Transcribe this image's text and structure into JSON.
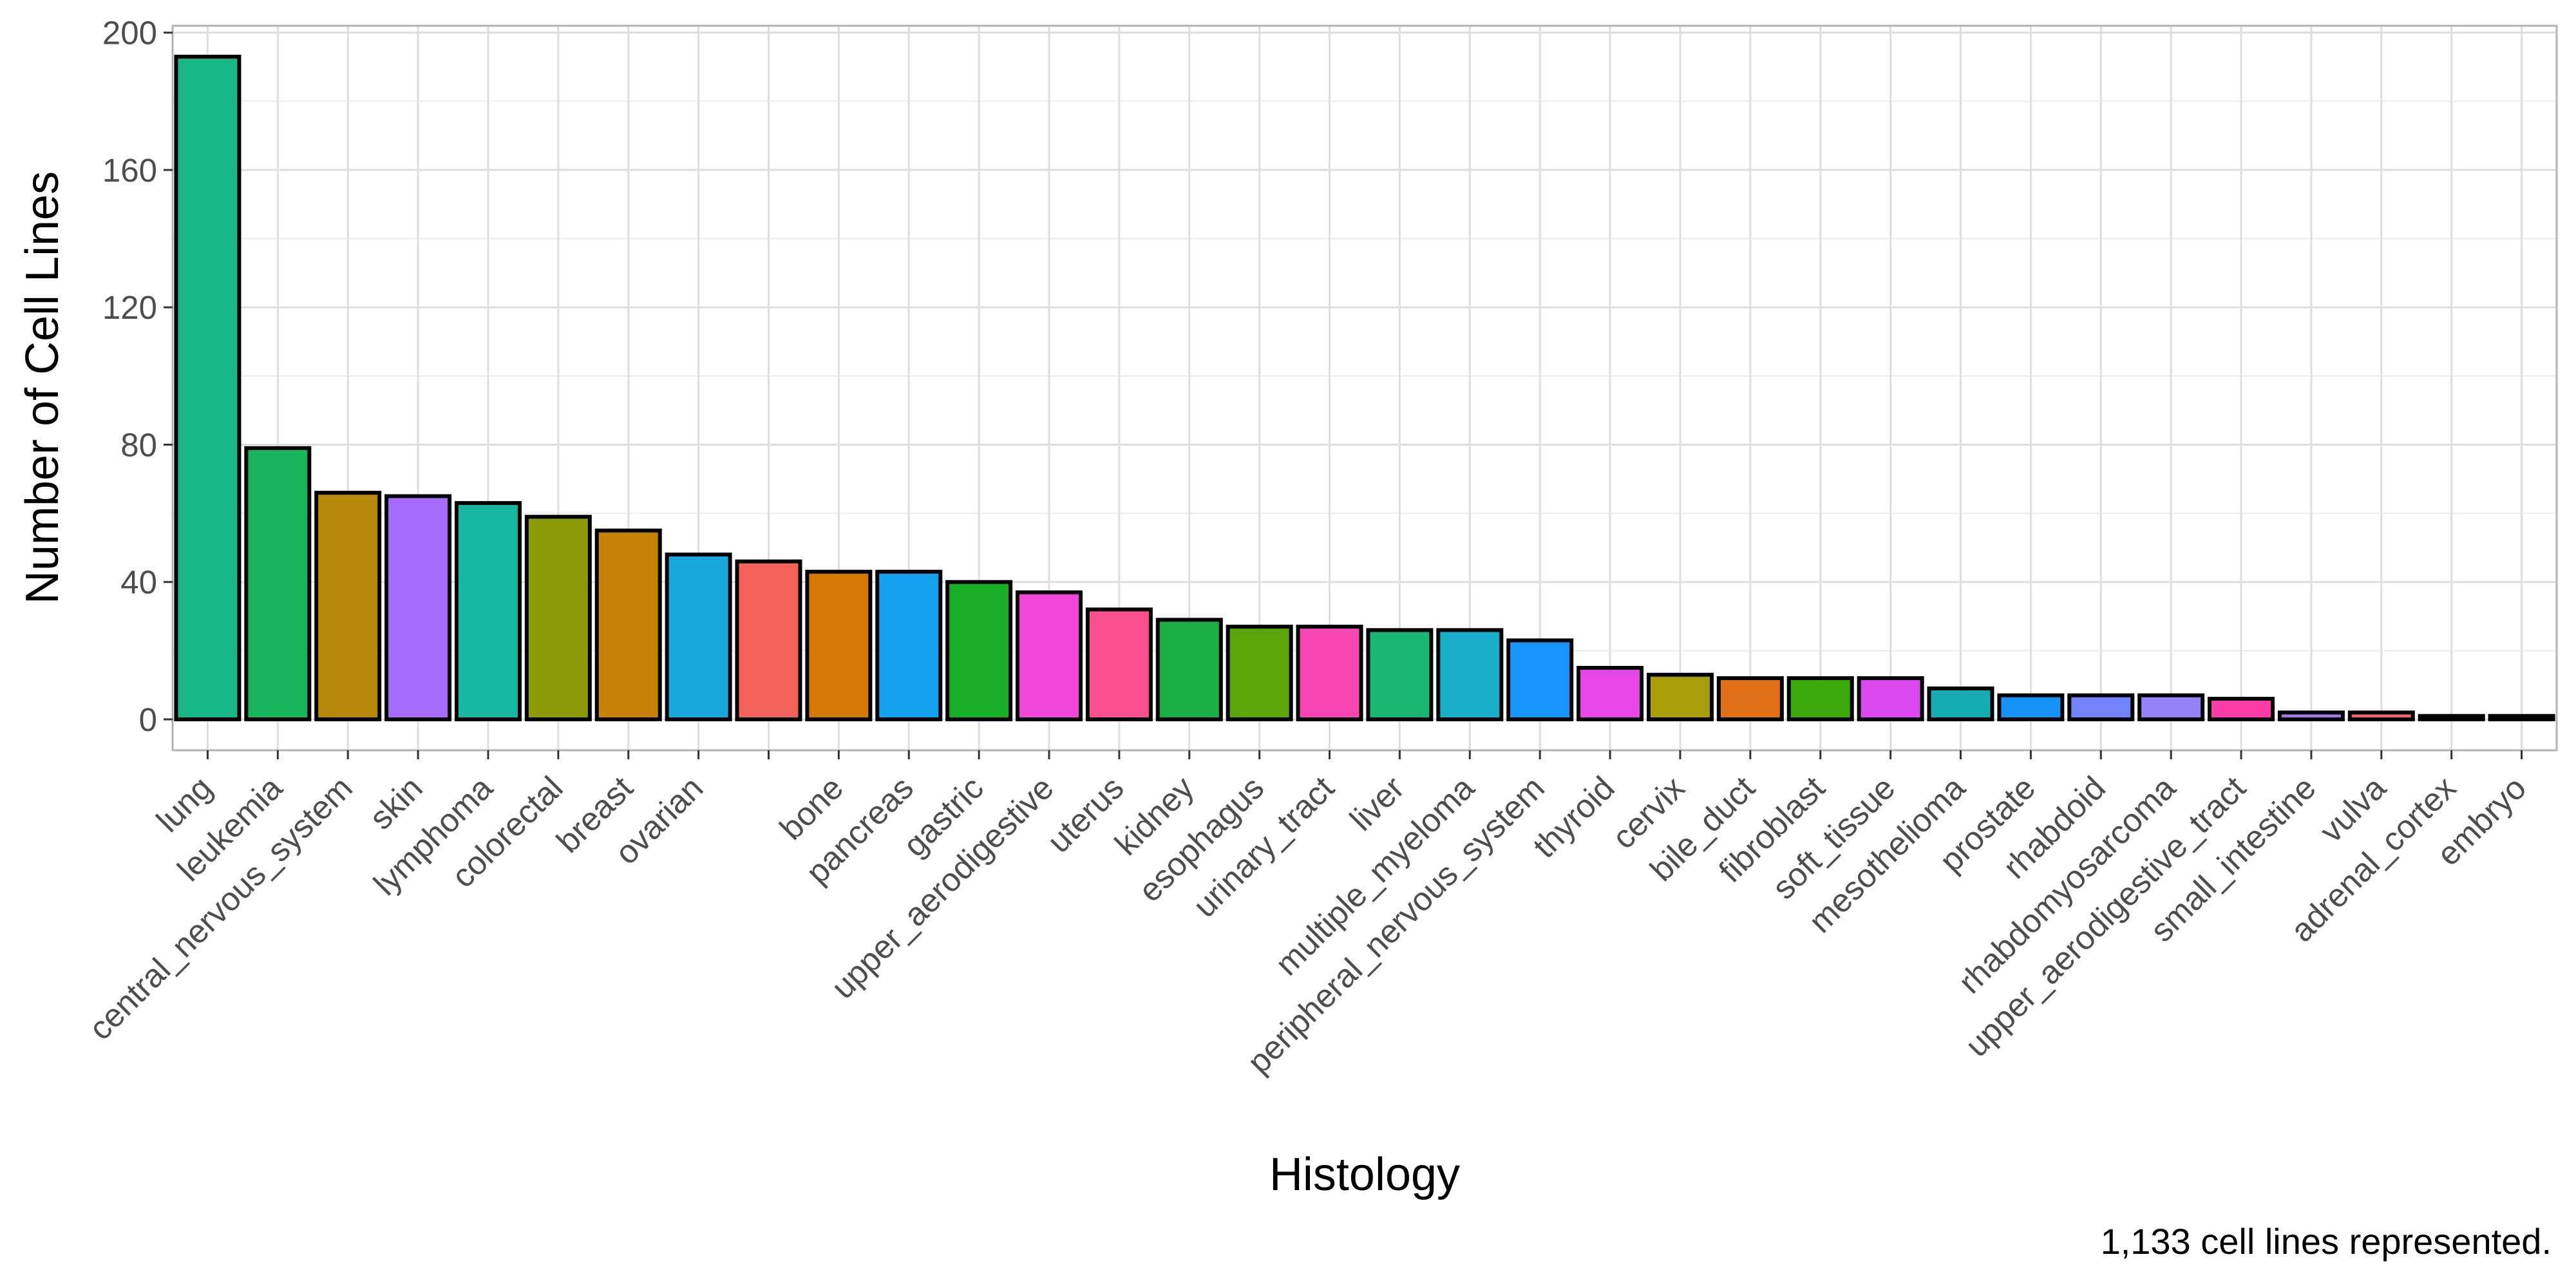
{
  "chart_data": {
    "type": "bar",
    "xlabel": "Histology",
    "ylabel": "Number of Cell Lines",
    "caption": "1,133 cell lines represented.",
    "ylim": [
      -9,
      202
    ],
    "yticks": [
      0,
      40,
      80,
      120,
      160,
      200
    ],
    "grid": true,
    "legend": "none",
    "categories": [
      "lung",
      "leukemia",
      "central_nervous_system",
      "skin",
      "lymphoma",
      "colorectal",
      "breast",
      "ovarian",
      "",
      "bone",
      "pancreas",
      "gastric",
      "upper_aerodigestive",
      "uterus",
      "kidney",
      "esophagus",
      "urinary_tract",
      "liver",
      "multiple_myeloma",
      "peripheral_nervous_system",
      "thyroid",
      "cervix",
      "bile_duct",
      "fibroblast",
      "soft_tissue",
      "mesothelioma",
      "prostate",
      "rhabdoid",
      "rhabdomyosarcoma",
      "upper_aerodigestive_tract",
      "small_intestine",
      "vulva",
      "adrenal_cortex",
      "embryo"
    ],
    "values": [
      193,
      79,
      66,
      65,
      63,
      59,
      55,
      48,
      46,
      43,
      43,
      40,
      37,
      32,
      29,
      27,
      27,
      26,
      26,
      23,
      15,
      13,
      12,
      12,
      12,
      9,
      7,
      7,
      7,
      6,
      2,
      2,
      1,
      1
    ],
    "colors": [
      "#19B688",
      "#1AB45A",
      "#B6890A",
      "#A66BFF",
      "#17B69E",
      "#8B9A05",
      "#C58104",
      "#18A8DE",
      "#F3615B",
      "#D57805",
      "#14A1EE",
      "#18AF26",
      "#F147D8",
      "#FB4F8F",
      "#1AAF44",
      "#5BA40A",
      "#FA46B2",
      "#19B774",
      "#18ADCA",
      "#1895FD",
      "#E946E8",
      "#A99E0A",
      "#E06F17",
      "#3CA90A",
      "#DB48F0",
      "#17ADB4",
      "#1793F7",
      "#7083FA",
      "#9483F6",
      "#FE3DA9",
      "#A576EE",
      "#F4606A",
      "#21A36F",
      "#13B0D8"
    ]
  }
}
